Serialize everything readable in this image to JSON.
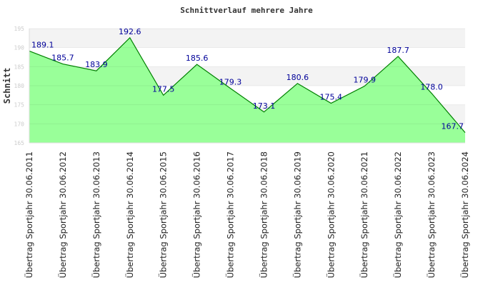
{
  "chart_data": {
    "type": "area",
    "title": "Schnittverlauf mehrere Jahre",
    "ylabel": "Schnitt",
    "xlabel": "",
    "ylim": [
      165,
      195
    ],
    "yticks": [
      "165",
      "170",
      "175",
      "180",
      "185",
      "190",
      "195"
    ],
    "categories": [
      "Übertrag Sportjahr 30.06.2011",
      "Übertrag Sportjahr 30.06.2012",
      "Übertrag Sportjahr 30.06.2013",
      "Übertrag Sportjahr 30.06.2014",
      "Übertrag Sportjahr 30.06.2015",
      "Übertrag Sportjahr 30.06.2016",
      "Übertrag Sportjahr 30.06.2017",
      "Übertrag Sportjahr 30.06.2018",
      "Übertrag Sportjahr 30.06.2019",
      "Übertrag Sportjahr 30.06.2020",
      "Übertrag Sportjahr 30.06.2021",
      "Übertrag Sportjahr 30.06.2022",
      "Übertrag Sportjahr 30.06.2023",
      "Übertrag Sportjahr 30.06.2024"
    ],
    "values": [
      189.1,
      185.7,
      183.9,
      192.6,
      177.5,
      185.6,
      179.3,
      173.1,
      180.6,
      175.4,
      179.9,
      187.7,
      178.0,
      167.7
    ],
    "labels": [
      "189.1",
      "185.7",
      "183.9",
      "192.6",
      "177.5",
      "185.6",
      "179.3",
      "173.1",
      "180.6",
      "175.4",
      "179.9",
      "187.7",
      "178.0",
      "167.7"
    ],
    "colors": {
      "fill": "#99ff99",
      "line": "#008000",
      "label": "#000099",
      "band": "#f3f3f3"
    },
    "grid": true
  }
}
